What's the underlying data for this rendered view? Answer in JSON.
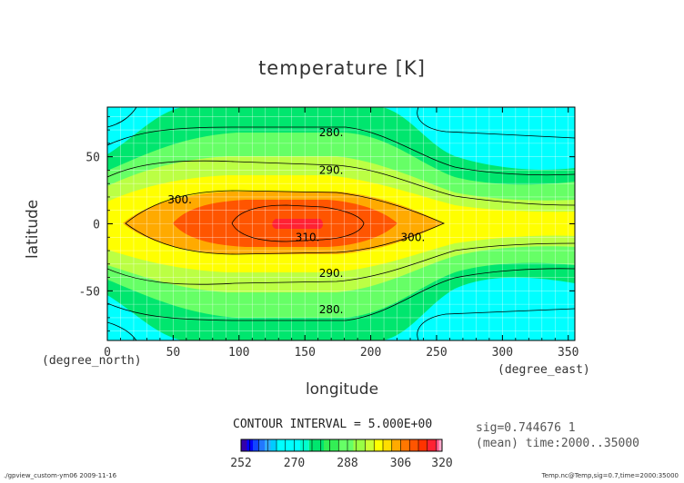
{
  "chart_data": {
    "type": "contour",
    "title": "temperature [K]",
    "xlabel": "longitude",
    "ylabel": "latitude",
    "x_unit": "(degree_east)",
    "y_unit": "(degree_north)",
    "xlim": [
      0,
      355
    ],
    "ylim": [
      -87,
      87
    ],
    "x_ticks": [
      0,
      50,
      100,
      150,
      200,
      250,
      300,
      350
    ],
    "y_ticks": [
      -50,
      0,
      50
    ],
    "grid": true,
    "contour_interval_label": "CONTOUR INTERVAL = 5.000E+00",
    "contour_labels": [
      "280.",
      "290.",
      "300.",
      "310.",
      "300.",
      "290.",
      "280."
    ],
    "colorbar": {
      "tick_labels": [
        "252",
        "270",
        "288",
        "306",
        "320"
      ],
      "range": [
        252,
        320
      ]
    },
    "annotation": [
      "sig=0.744676 1",
      "(mean) time:2000..35000"
    ]
  },
  "footer": {
    "left": "./gpview_custom-ym06  2009-11-16",
    "right": "Temp.nc@Temp,sig=0.7,time=2000:35000"
  },
  "colors": {
    "cyan": "#00ffff",
    "green1": "#00e66e",
    "green2": "#66ff66",
    "greenyellow": "#bbff44",
    "yellow": "#ffff00",
    "orange": "#ffaa00",
    "red_orange": "#ff5500",
    "red": "#ff2233"
  }
}
